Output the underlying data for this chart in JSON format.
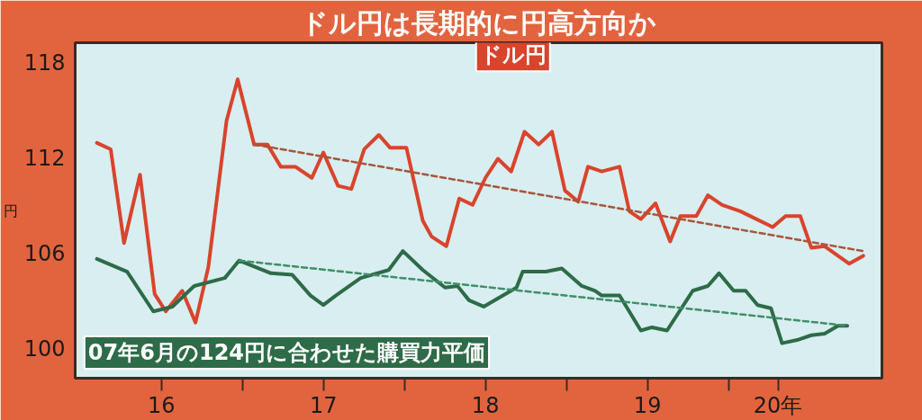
{
  "chart_data": {
    "type": "line",
    "title": "ドル円は長期的に円高方向か",
    "ylabel": "円",
    "xlim": [
      "2015-12-20",
      "2020-12-10"
    ],
    "ylim": [
      98.1,
      119.2
    ],
    "xticks": [
      {
        "value": "2016-07-01",
        "label": "16"
      },
      {
        "value": "2017-01-01",
        "label": null
      },
      {
        "value": "2017-07-01",
        "label": "17"
      },
      {
        "value": "2018-01-01",
        "label": null
      },
      {
        "value": "2018-07-01",
        "label": "18"
      },
      {
        "value": "2019-01-01",
        "label": null
      },
      {
        "value": "2019-07-01",
        "label": "19"
      },
      {
        "value": "2020-01-01",
        "label": null
      },
      {
        "value": "2020-04-20",
        "label": "20年"
      }
    ],
    "yticks": [
      100,
      106,
      112,
      118
    ],
    "grid": false,
    "legend": false,
    "marker": "none",
    "line_style": "solid",
    "series": [
      {
        "name": "ドル円",
        "color": "#d9442c",
        "x": [
          "2016-02-07",
          "2016-03-09",
          "2016-04-08",
          "2016-05-14",
          "2016-06-16",
          "2016-07-11",
          "2016-08-17",
          "2016-09-16",
          "2016-10-15",
          "2016-11-25",
          "2016-12-20",
          "2017-01-26",
          "2017-02-25",
          "2017-03-27",
          "2017-04-29",
          "2017-06-05",
          "2017-07-01",
          "2017-08-03",
          "2017-09-02",
          "2017-10-01",
          "2017-11-03",
          "2017-11-28",
          "2018-01-04",
          "2018-02-10",
          "2018-03-02",
          "2018-04-04",
          "2018-05-03",
          "2018-06-02",
          "2018-07-01",
          "2018-07-29",
          "2018-08-28",
          "2018-09-27",
          "2018-10-29",
          "2018-11-28",
          "2018-12-27",
          "2019-01-26",
          "2019-02-17",
          "2019-03-20",
          "2019-04-29",
          "2019-05-21",
          "2019-06-16",
          "2019-07-19",
          "2019-08-21",
          "2019-09-13",
          "2019-10-19",
          "2019-11-14",
          "2019-12-16",
          "2020-01-26",
          "2020-04-08",
          "2020-05-07",
          "2020-06-09",
          "2020-07-04",
          "2020-08-03",
          "2020-09-27",
          "2020-10-29"
        ],
        "values": [
          112.9,
          112.5,
          106.6,
          110.9,
          103.4,
          102.3,
          103.6,
          101.6,
          105.1,
          114.3,
          116.9,
          112.8,
          112.8,
          111.4,
          111.4,
          110.7,
          112.3,
          110.2,
          110.0,
          112.5,
          113.4,
          112.6,
          112.6,
          108.0,
          107.0,
          106.4,
          109.4,
          109.0,
          110.7,
          111.9,
          111.1,
          113.6,
          112.8,
          113.6,
          109.9,
          109.2,
          111.4,
          111.1,
          111.4,
          108.6,
          108.1,
          109.1,
          106.7,
          108.3,
          108.3,
          109.6,
          109.0,
          108.6,
          107.6,
          108.3,
          108.3,
          106.3,
          106.4,
          105.3,
          105.8
        ]
      },
      {
        "name": "07年6月の124円に合わせた購買力平価",
        "color": "#2e6b48",
        "x": [
          "2016-02-07",
          "2016-04-15",
          "2016-06-13",
          "2016-07-26",
          "2016-09-13",
          "2016-11-21",
          "2016-12-23",
          "2017-03-05",
          "2017-04-22",
          "2017-06-02",
          "2017-07-01",
          "2017-07-29",
          "2017-09-23",
          "2017-11-25",
          "2017-12-27",
          "2018-02-10",
          "2018-04-01",
          "2018-04-29",
          "2018-05-25",
          "2018-06-27",
          "2018-09-09",
          "2018-09-23",
          "2018-11-14",
          "2018-12-20",
          "2019-02-03",
          "2019-03-05",
          "2019-03-20",
          "2019-04-29",
          "2019-06-16",
          "2019-07-11",
          "2019-08-14",
          "2019-10-11",
          "2019-11-14",
          "2019-12-09",
          "2020-01-11",
          "2020-02-07",
          "2020-03-05",
          "2020-04-04",
          "2020-04-29",
          "2020-06-02",
          "2020-07-04",
          "2020-08-03",
          "2020-09-02",
          "2020-09-23"
        ],
        "values": [
          105.6,
          104.8,
          102.3,
          102.6,
          103.9,
          104.4,
          105.5,
          104.7,
          104.6,
          103.3,
          102.7,
          103.3,
          104.4,
          104.9,
          106.1,
          104.9,
          103.8,
          103.9,
          103.0,
          102.6,
          103.8,
          104.8,
          104.8,
          105.0,
          103.9,
          103.6,
          103.3,
          103.3,
          101.1,
          101.3,
          101.1,
          103.6,
          103.9,
          104.7,
          103.6,
          103.6,
          102.7,
          102.5,
          100.3,
          100.5,
          100.8,
          100.9,
          101.4,
          101.4
        ]
      },
      {
        "color": "#a8553a",
        "line_style": "dashed",
        "x": [
          "2017-01-26",
          "2020-10-27"
        ],
        "values": [
          112.8,
          106.1
        ]
      },
      {
        "color": "#3f8f6a",
        "line_style": "dashed",
        "x": [
          "2016-12-23",
          "2020-09-23"
        ],
        "values": [
          105.5,
          101.4
        ]
      }
    ]
  }
}
